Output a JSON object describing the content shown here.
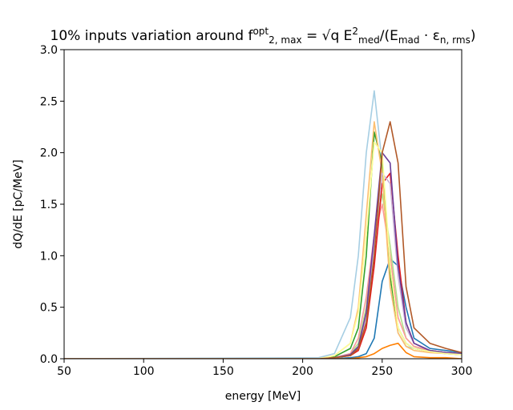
{
  "chart_data": {
    "type": "line",
    "title": [
      {
        "text": "10% inputs variation around "
      },
      {
        "text": "f"
      },
      {
        "text": "opt",
        "shift": "sup"
      },
      {
        "text": "2, max",
        "shift": "sub"
      },
      {
        "text": " = √q E"
      },
      {
        "text": "2",
        "shift": "sup"
      },
      {
        "text": "med",
        "shift": "sub"
      },
      {
        "text": "/(E"
      },
      {
        "text": "mad",
        "shift": "sub"
      },
      {
        "text": " · ε"
      },
      {
        "text": "n, rms",
        "shift": "sub"
      },
      {
        "text": ")"
      }
    ],
    "xlabel": "energy [MeV]",
    "ylabel": "dQ/dE [pC/MeV]",
    "x": [
      50,
      210,
      220,
      230,
      235,
      240,
      245,
      250,
      255,
      260,
      265,
      270,
      280,
      290,
      300
    ],
    "series": [
      {
        "color": "#a6cee3",
        "values": [
          0,
          0.01,
          0.05,
          0.4,
          1.0,
          2.0,
          2.6,
          1.9,
          0.7,
          0.25,
          0.12,
          0.1,
          0.08,
          0.06,
          0.05
        ]
      },
      {
        "color": "#1f78b4",
        "values": [
          0,
          0,
          0,
          0.01,
          0.02,
          0.05,
          0.2,
          0.75,
          0.97,
          0.9,
          0.5,
          0.2,
          0.1,
          0.08,
          0.06
        ]
      },
      {
        "color": "#b2df8a",
        "values": [
          0,
          0,
          0.01,
          0.05,
          0.15,
          0.5,
          1.2,
          1.6,
          1.1,
          0.5,
          0.2,
          0.12,
          0.08,
          0.06,
          0.05
        ]
      },
      {
        "color": "#33a02c",
        "values": [
          0,
          0,
          0.02,
          0.1,
          0.3,
          1.0,
          2.2,
          1.9,
          0.8,
          0.3,
          0.15,
          0.1,
          0.07,
          0.05,
          0.04
        ]
      },
      {
        "color": "#fb9a99",
        "values": [
          0,
          0,
          0.01,
          0.05,
          0.2,
          0.6,
          1.2,
          1.5,
          1.0,
          0.4,
          0.2,
          0.12,
          0.08,
          0.06,
          0.05
        ]
      },
      {
        "color": "#e31a1c",
        "values": [
          0,
          0,
          0.01,
          0.03,
          0.08,
          0.3,
          0.9,
          1.7,
          1.8,
          1.0,
          0.35,
          0.15,
          0.08,
          0.06,
          0.05
        ]
      },
      {
        "color": "#fdbf6f",
        "values": [
          0,
          0,
          0.03,
          0.15,
          0.5,
          1.4,
          2.3,
          1.8,
          0.7,
          0.25,
          0.12,
          0.08,
          0.06,
          0.05,
          0.04
        ]
      },
      {
        "color": "#ff7f00",
        "values": [
          0,
          0,
          0,
          0,
          0.01,
          0.02,
          0.05,
          0.1,
          0.13,
          0.15,
          0.06,
          0.02,
          0.01,
          0.01,
          0
        ]
      },
      {
        "color": "#cab2d6",
        "values": [
          0,
          0,
          0.01,
          0.04,
          0.1,
          0.4,
          1.1,
          1.8,
          1.7,
          0.8,
          0.3,
          0.15,
          0.08,
          0.06,
          0.05
        ]
      },
      {
        "color": "#6a3d9a",
        "values": [
          0,
          0,
          0.01,
          0.04,
          0.12,
          0.45,
          1.2,
          2.0,
          1.9,
          0.9,
          0.35,
          0.15,
          0.08,
          0.06,
          0.05
        ]
      },
      {
        "color": "#ffff99",
        "values": [
          0,
          0,
          0.03,
          0.15,
          0.45,
          1.2,
          2.1,
          2.0,
          0.9,
          0.3,
          0.15,
          0.1,
          0.07,
          0.05,
          0.04
        ]
      },
      {
        "color": "#b15928",
        "values": [
          0,
          0,
          0.01,
          0.03,
          0.1,
          0.35,
          1.0,
          2.0,
          2.3,
          1.9,
          0.7,
          0.3,
          0.15,
          0.1,
          0.06
        ]
      }
    ],
    "xlim": [
      50,
      300
    ],
    "xticks": [
      50,
      100,
      150,
      200,
      250,
      300
    ],
    "ylim": [
      0,
      3
    ],
    "yticks": [
      {
        "value": 0,
        "label": "0.0"
      },
      {
        "value": 0.5,
        "label": "0.5"
      },
      {
        "value": 1,
        "label": "1.0"
      },
      {
        "value": 1.5,
        "label": "1.5"
      },
      {
        "value": 2,
        "label": "2.0"
      },
      {
        "value": 2.5,
        "label": "2.5"
      },
      {
        "value": 3,
        "label": "3.0"
      }
    ],
    "grid": false
  }
}
